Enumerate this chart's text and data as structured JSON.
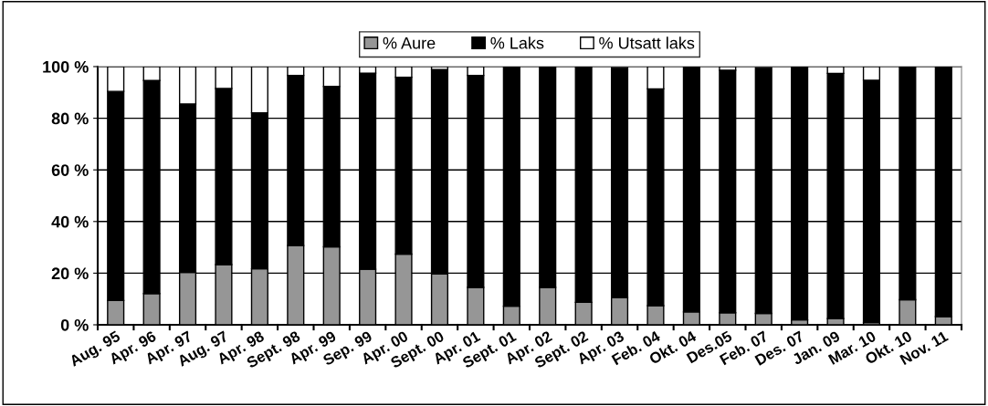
{
  "chart_data": {
    "type": "bar",
    "stacked": true,
    "categories": [
      "Aug. 95",
      "Apr. 96",
      "Apr. 97",
      "Aug. 97",
      "Apr. 98",
      "Sept. 98",
      "Apr. 99",
      "Sep. 99",
      "Apr. 00",
      "Sept. 00",
      "Apr. 01",
      "Sept. 01",
      "Apr. 02",
      "Sept. 02",
      "Apr. 03",
      "Feb. 04",
      "Okt. 04",
      "Des.05",
      "Feb. 07",
      "Des. 07",
      "Jan. 09",
      "Mar. 10",
      "Okt. 10",
      "Nov. 11"
    ],
    "series": [
      {
        "name": "% Aure",
        "color": "#969696",
        "values": [
          9.4,
          12.1,
          20.3,
          23.3,
          21.7,
          30.7,
          30.2,
          21.5,
          27.4,
          19.7,
          14.5,
          7.2,
          14.5,
          8.7,
          10.6,
          7.4,
          5.0,
          4.7,
          4.4,
          1.9,
          2.4,
          0.9,
          9.7,
          3.2
        ]
      },
      {
        "name": "% Laks",
        "color": "#000000",
        "values": [
          81.0,
          82.5,
          65.2,
          68.2,
          60.4,
          65.9,
          62.1,
          76.0,
          68.5,
          79.2,
          82.1,
          92.8,
          85.5,
          91.3,
          89.0,
          84.0,
          95.0,
          93.9,
          95.2,
          98.1,
          95.0,
          93.8,
          90.3,
          96.8
        ]
      },
      {
        "name": "% Utsatt laks",
        "color": "#ffffff",
        "values": [
          9.6,
          5.4,
          14.5,
          8.5,
          17.9,
          3.4,
          7.7,
          2.5,
          4.1,
          1.1,
          3.4,
          null,
          null,
          null,
          null,
          8.6,
          null,
          1.4,
          null,
          null,
          2.6,
          5.3,
          null,
          null
        ]
      }
    ],
    "ylim": [
      0,
      100
    ],
    "yticks": [
      {
        "value": 0,
        "label": "0 %"
      },
      {
        "value": 20,
        "label": "20 %"
      },
      {
        "value": 40,
        "label": "40 %"
      },
      {
        "value": 60,
        "label": "60 %"
      },
      {
        "value": 80,
        "label": "80 %"
      },
      {
        "value": 100,
        "label": "100 %"
      }
    ],
    "grid": "y",
    "legend": "top"
  }
}
